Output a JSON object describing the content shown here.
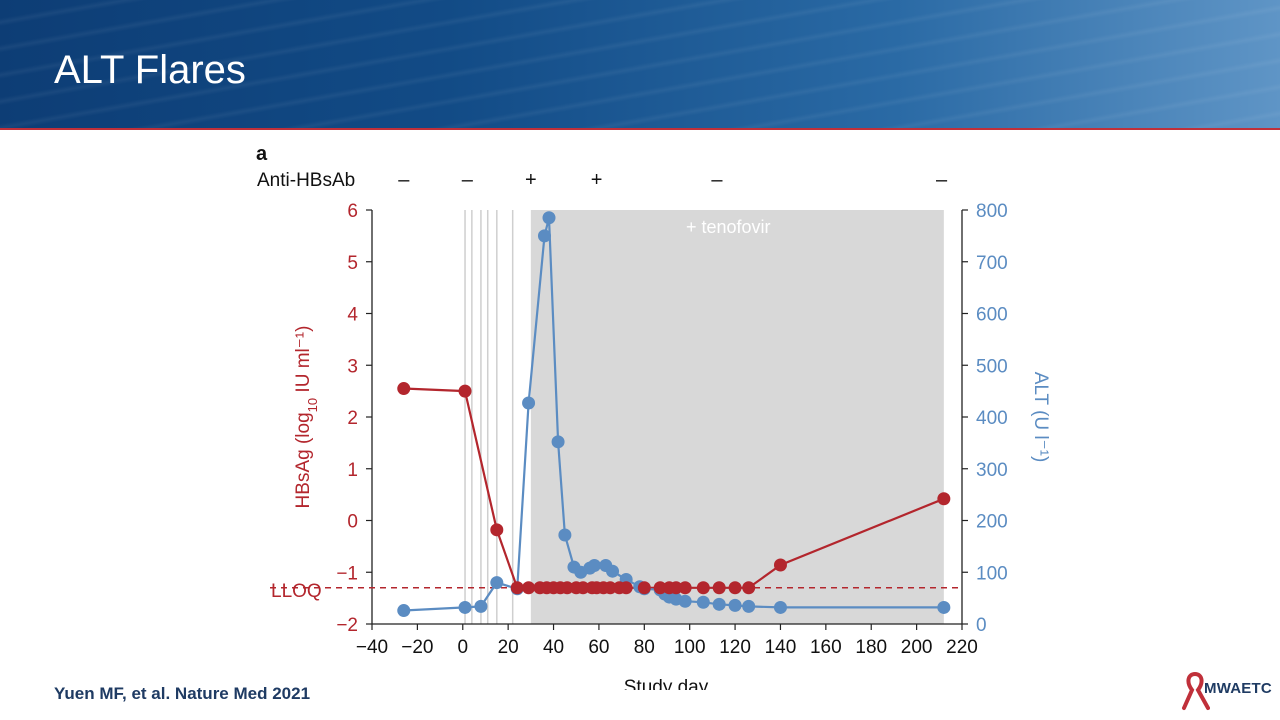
{
  "slide": {
    "title": "ALT Flares",
    "citation": "Yuen MF, et al. Nature Med 2021",
    "logo_text": "MWAETC"
  },
  "colors": {
    "hbsag": "#b3262d",
    "alt": "#5b8cc2",
    "shade": "#d8d8d8",
    "banner": "#124b86"
  },
  "chart_data": {
    "type": "line",
    "panel_label": "a",
    "xlabel": "Study day",
    "ylabel_left": "HBsAg (log10 IU ml⁻¹)",
    "ylabel_right": "ALT (U l⁻¹)",
    "xlim": [
      -40,
      220
    ],
    "x_ticks": [
      -40,
      -20,
      0,
      20,
      40,
      60,
      80,
      100,
      120,
      140,
      160,
      180,
      200,
      220
    ],
    "y_left_lim": [
      -2,
      6
    ],
    "y_left_ticks": [
      -2,
      -1,
      0,
      1,
      2,
      3,
      4,
      5,
      6
    ],
    "y_right_lim": [
      0,
      800
    ],
    "y_right_ticks": [
      0,
      100,
      200,
      300,
      400,
      500,
      600,
      700,
      800
    ],
    "lloq": {
      "label": "LLOQ",
      "value": -1.3
    },
    "shaded_region": {
      "label": "+ tenofovir",
      "x_start": 30,
      "x_end": 212
    },
    "dosing_days": [
      1,
      4,
      8,
      11,
      15,
      22
    ],
    "anti_hbsab": {
      "label": "Anti-HBsAb",
      "marks": [
        {
          "x": -26,
          "sign": "–"
        },
        {
          "x": 2,
          "sign": "–"
        },
        {
          "x": 30,
          "sign": "+"
        },
        {
          "x": 59,
          "sign": "+"
        },
        {
          "x": 112,
          "sign": "–"
        },
        {
          "x": 211,
          "sign": "–"
        }
      ]
    },
    "series": [
      {
        "name": "HBsAg",
        "axis": "left",
        "x": [
          -26,
          1,
          15,
          24,
          29,
          34,
          37,
          40,
          43,
          46,
          50,
          53,
          57,
          59,
          62,
          65,
          69,
          72,
          80,
          87,
          91,
          94,
          98,
          106,
          113,
          120,
          126,
          140,
          212
        ],
        "y": [
          2.55,
          2.5,
          -0.18,
          -1.3,
          -1.3,
          -1.3,
          -1.3,
          -1.3,
          -1.3,
          -1.3,
          -1.3,
          -1.3,
          -1.3,
          -1.3,
          -1.3,
          -1.3,
          -1.3,
          -1.3,
          -1.3,
          -1.3,
          -1.3,
          -1.3,
          -1.3,
          -1.3,
          -1.3,
          -1.3,
          -1.3,
          -0.86,
          0.42
        ]
      },
      {
        "name": "ALT",
        "axis": "right",
        "x": [
          -26,
          1,
          8,
          15,
          24,
          29,
          36,
          38,
          42,
          45,
          49,
          52,
          56,
          58,
          63,
          66,
          72,
          78,
          80,
          87,
          89,
          91,
          94,
          98,
          106,
          113,
          120,
          126,
          140,
          212
        ],
        "y": [
          26,
          32,
          34,
          80,
          68,
          427,
          750,
          785,
          352,
          172,
          110,
          100,
          108,
          113,
          113,
          102,
          86,
          72,
          68,
          66,
          58,
          52,
          48,
          44,
          42,
          38,
          36,
          34,
          32,
          32
        ]
      }
    ]
  }
}
